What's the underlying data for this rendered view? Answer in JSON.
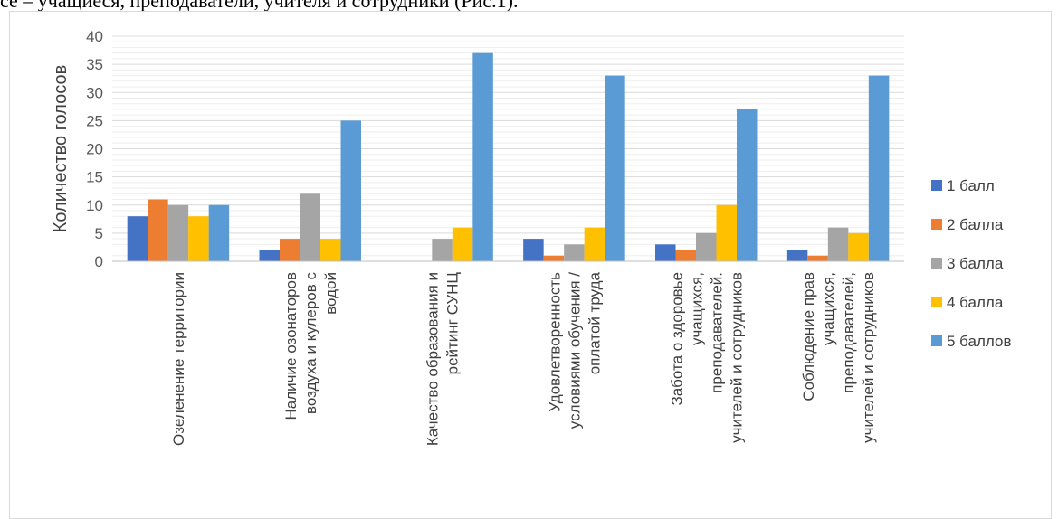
{
  "top_text": "се – учащиеся, преподаватели, учителя и сотрудники (Рис.1).",
  "chart_data": {
    "type": "bar",
    "title": "",
    "xlabel": "",
    "ylabel": "Количество голосов",
    "ylim": [
      0,
      40
    ],
    "yticks": [
      0,
      5,
      10,
      15,
      20,
      25,
      30,
      35,
      40
    ],
    "grid": true,
    "legend_position": "right",
    "categories": [
      [
        "Озеленение территории"
      ],
      [
        "Наличие озонаторов",
        "воздуха и кулеров с",
        "водой"
      ],
      [
        "Качество образования и",
        "рейтинг СУНЦ"
      ],
      [
        "Удовлетворенность",
        "условиями обучения /",
        "оплатой труда"
      ],
      [
        "Забота о здоровье",
        "учащихся,",
        "преподавателей.",
        "учителей и сотрудников"
      ],
      [
        "Соблюдение прав",
        "учащихся,",
        "преподавателей,",
        "учителей и сотрудников"
      ]
    ],
    "series": [
      {
        "name": "1 балл",
        "color": "#4472C4",
        "values": [
          8,
          2,
          0,
          4,
          3,
          2
        ]
      },
      {
        "name": "2 балла",
        "color": "#ED7D31",
        "values": [
          11,
          4,
          0,
          1,
          2,
          1
        ]
      },
      {
        "name": "3 балла",
        "color": "#A5A5A5",
        "values": [
          10,
          12,
          4,
          3,
          5,
          6
        ]
      },
      {
        "name": "4 балла",
        "color": "#FFC000",
        "values": [
          8,
          4,
          6,
          6,
          10,
          5
        ]
      },
      {
        "name": "5 баллов",
        "color": "#5B9BD5",
        "values": [
          10,
          25,
          37,
          33,
          27,
          33
        ]
      }
    ]
  }
}
